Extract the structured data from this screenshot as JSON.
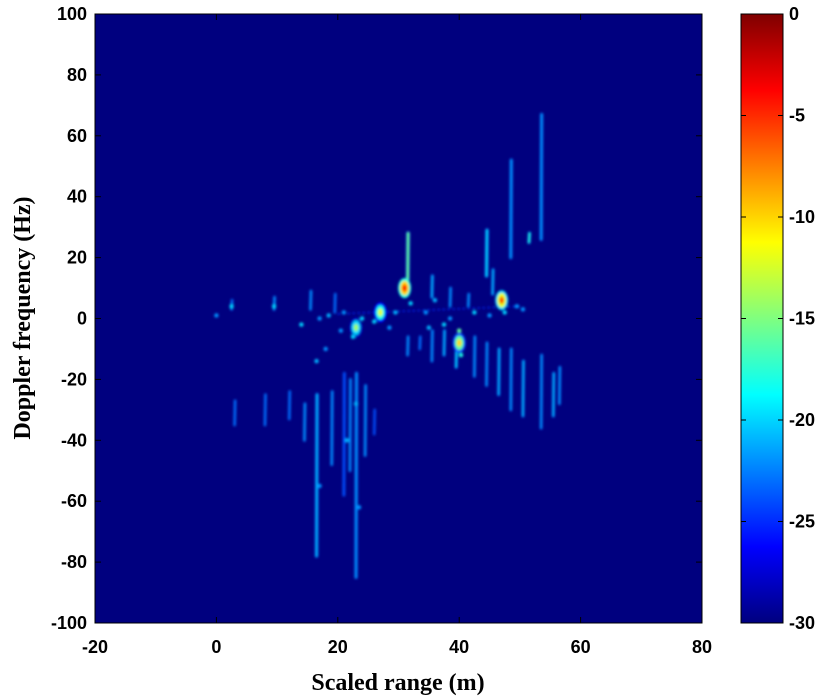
{
  "chart_data": {
    "type": "heatmap",
    "title": "",
    "xlabel": "Scaled range (m)",
    "ylabel": "Doppler frequency (Hz)",
    "xlim": [
      -20,
      80
    ],
    "ylim": [
      -100,
      100
    ],
    "xticks": [
      "-20",
      "0",
      "20",
      "40",
      "60",
      "80"
    ],
    "yticks": [
      "100",
      "80",
      "60",
      "40",
      "20",
      "0",
      "-20",
      "-40",
      "-60",
      "-80",
      "-100"
    ],
    "colorbar": {
      "range": [
        -30,
        0
      ],
      "ticks": [
        "0",
        "-5",
        "-10",
        "-15",
        "-20",
        "-25",
        "-30"
      ],
      "colormap": "jet",
      "background_color": "#00007f"
    },
    "grid": false,
    "features": [
      {
        "kind": "streak",
        "x": 53.5,
        "y0": 26,
        "y1": 67,
        "peak_db": -22
      },
      {
        "kind": "streak",
        "x": 48.5,
        "y0": 20,
        "y1": 52,
        "peak_db": -22
      },
      {
        "kind": "streak",
        "x": 44.5,
        "y0": 14,
        "y1": 29,
        "peak_db": -20
      },
      {
        "kind": "streak",
        "x": 31.5,
        "y0": 10,
        "y1": 28,
        "peak_db": -16
      },
      {
        "kind": "blob",
        "x": 31.0,
        "y": 10,
        "peak_db": -4
      },
      {
        "kind": "blob",
        "x": 47.0,
        "y": 6,
        "peak_db": -6
      },
      {
        "kind": "blob",
        "x": 27.0,
        "y": 2,
        "peak_db": -12
      },
      {
        "kind": "blob",
        "x": 40.0,
        "y": -8,
        "peak_db": -10
      },
      {
        "kind": "blob",
        "x": 23.0,
        "y": -3,
        "peak_db": -14
      },
      {
        "kind": "streak",
        "x": 16.5,
        "y0": -78,
        "y1": -25,
        "peak_db": -21
      },
      {
        "kind": "streak",
        "x": 23.0,
        "y0": -85,
        "y1": -18,
        "peak_db": -22
      },
      {
        "kind": "streak",
        "x": 21.0,
        "y0": -58,
        "y1": -18,
        "peak_db": -24
      }
    ]
  }
}
